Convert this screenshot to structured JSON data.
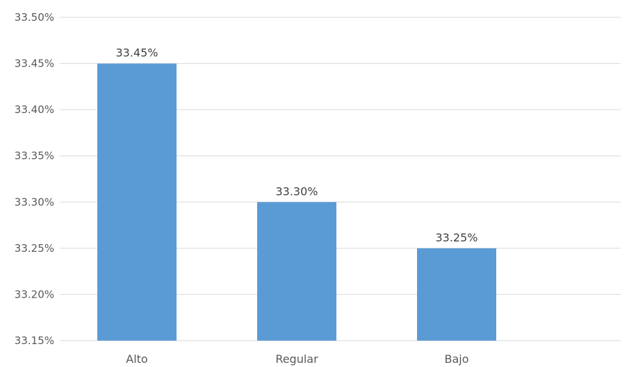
{
  "chart_data": {
    "type": "bar",
    "title": "",
    "xlabel": "",
    "ylabel": "",
    "categories": [
      "Alto",
      "Regular",
      "Bajo"
    ],
    "values": [
      33.45,
      33.3,
      33.25
    ],
    "data_labels": [
      "33.45%",
      "33.30%",
      "33.25%"
    ],
    "ylim": [
      33.15,
      33.5
    ],
    "yticks": [
      33.15,
      33.2,
      33.25,
      33.3,
      33.35,
      33.4,
      33.45,
      33.5
    ],
    "ytick_labels": [
      "33.15%",
      "33.20%",
      "33.25%",
      "33.30%",
      "33.35%",
      "33.40%",
      "33.45%",
      "33.50%"
    ],
    "grid": true,
    "legend": "none",
    "bar_color": "#5b9bd5"
  }
}
